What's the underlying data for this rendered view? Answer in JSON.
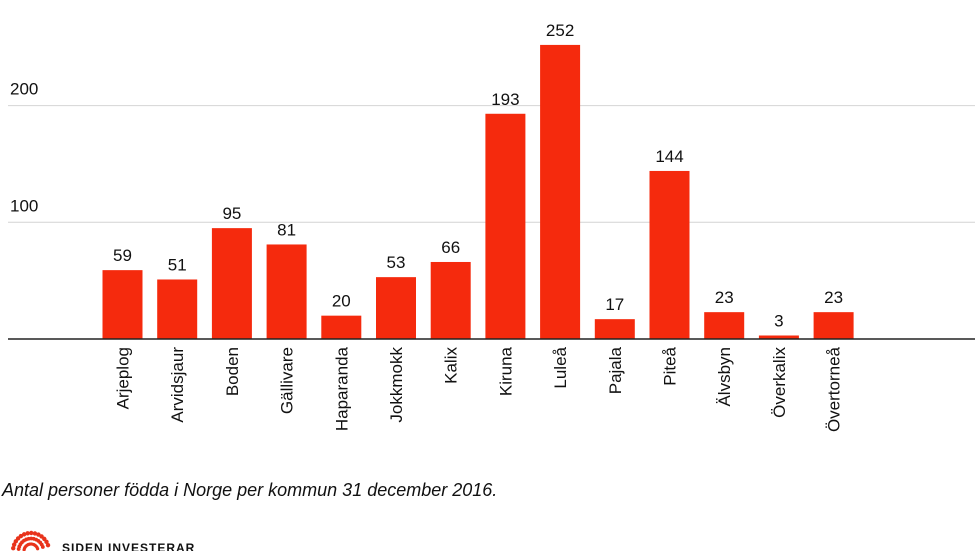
{
  "chart_data": {
    "type": "bar",
    "categories": [
      "Arjeplog",
      "Arvidsjaur",
      "Boden",
      "Gällivare",
      "Haparanda",
      "Jokkmokk",
      "Kalix",
      "Kiruna",
      "Luleå",
      "Pajala",
      "Piteå",
      "Älvsbyn",
      "Överkalix",
      "Övertorneå"
    ],
    "values": [
      59,
      51,
      95,
      81,
      20,
      53,
      66,
      193,
      252,
      17,
      144,
      23,
      3,
      23
    ],
    "yticks": [
      100,
      200
    ],
    "ylim": [
      0,
      260
    ],
    "bar_color": "#f52a0d",
    "grid": true,
    "legend": "none",
    "title": "",
    "xlabel": "",
    "ylabel": ""
  },
  "caption": "Antal personer födda i Norge per kommun 31 december 2016.",
  "logo": {
    "text": "SIDEN INVESTERAR",
    "color": "#e8331b"
  }
}
